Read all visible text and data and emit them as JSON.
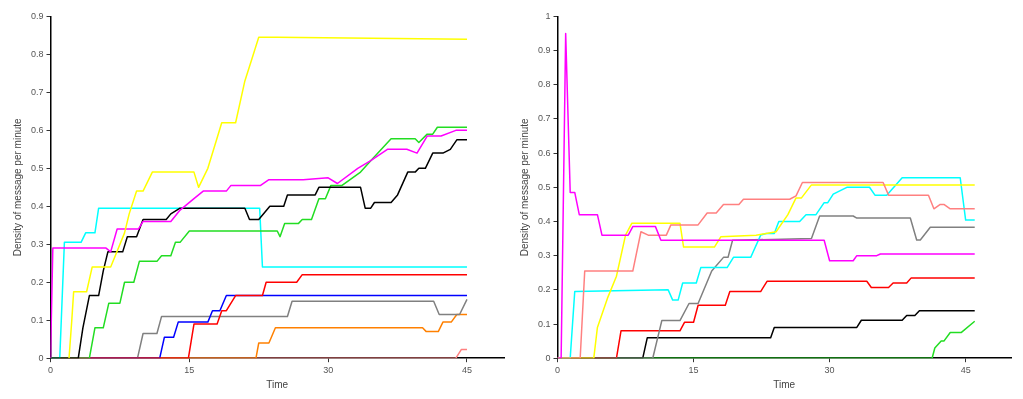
{
  "chart_data": [
    {
      "type": "line",
      "xlabel": "Time",
      "ylabel": "Density of message per minute",
      "xlim": [
        0,
        49
      ],
      "xticks": [
        0,
        15,
        30,
        45
      ],
      "ylim": [
        0,
        0.9
      ],
      "yticks": [
        0,
        0.1,
        0.2,
        0.3,
        0.4,
        0.5,
        0.6,
        0.7,
        0.8,
        0.9
      ],
      "marker": "none",
      "series": [
        {
          "color": "#ffff00",
          "x": [
            2.0,
            2.3,
            2.5,
            3.9,
            4.5,
            6.5,
            7,
            8,
            8.5,
            9.3,
            10,
            11,
            15.5,
            16,
            17,
            18,
            18.5,
            20,
            21,
            22.5,
            24.5,
            45
          ],
          "values": [
            0,
            0.1,
            0.175,
            0.175,
            0.24,
            0.24,
            0.27,
            0.33,
            0.38,
            0.44,
            0.44,
            0.49,
            0.49,
            0.45,
            0.5,
            0.58,
            0.62,
            0.62,
            0.73,
            0.845,
            0.845,
            0.84
          ]
        },
        {
          "color": "#ff00ff",
          "x": [
            0,
            0.25,
            1,
            6,
            6.5,
            7.2,
            9.5,
            10,
            13,
            14,
            15.5,
            16.5,
            19,
            19.5,
            22.7,
            23.6,
            27.3,
            30,
            31,
            33.2,
            34.6,
            36.4,
            38.5,
            39.6,
            40.7,
            42.2,
            43.8,
            45
          ],
          "values": [
            0,
            0.29,
            0.29,
            0.29,
            0.28,
            0.34,
            0.34,
            0.36,
            0.36,
            0.39,
            0.42,
            0.44,
            0.44,
            0.455,
            0.455,
            0.47,
            0.47,
            0.475,
            0.46,
            0.5,
            0.52,
            0.55,
            0.55,
            0.54,
            0.585,
            0.585,
            0.6,
            0.6
          ]
        },
        {
          "color": "#000000",
          "x": [
            0,
            3,
            3.5,
            4.2,
            5.2,
            5.7,
            6.2,
            7.8,
            8.3,
            9.3,
            10,
            12.5,
            13,
            14,
            21,
            21.5,
            22.5,
            23.7,
            25.2,
            25.6,
            28.6,
            29,
            33.5,
            34,
            34.6,
            35,
            36.8,
            37.5,
            38.6,
            39.4,
            39.8,
            40.5,
            41.3,
            42.4,
            43.2,
            43.9,
            45
          ],
          "values": [
            0,
            0,
            0.08,
            0.165,
            0.165,
            0.23,
            0.28,
            0.28,
            0.32,
            0.32,
            0.365,
            0.365,
            0.38,
            0.395,
            0.395,
            0.365,
            0.365,
            0.4,
            0.4,
            0.43,
            0.43,
            0.45,
            0.45,
            0.395,
            0.395,
            0.41,
            0.41,
            0.43,
            0.49,
            0.49,
            0.5,
            0.5,
            0.54,
            0.54,
            0.55,
            0.575,
            0.575
          ]
        },
        {
          "color": "#22dd22",
          "x": [
            0,
            4.2,
            4.8,
            5.7,
            6.3,
            7.5,
            8,
            9,
            9.6,
            11.5,
            12,
            13,
            13.5,
            14,
            15,
            24.5,
            24.8,
            25.3,
            26.8,
            27.2,
            28.2,
            29,
            29.7,
            30.3,
            31.5,
            33.5,
            34.6,
            36.8,
            39.4,
            39.8,
            40.7,
            41.3,
            41.8,
            45
          ],
          "values": [
            0,
            0,
            0.08,
            0.08,
            0.145,
            0.145,
            0.2,
            0.2,
            0.255,
            0.255,
            0.27,
            0.27,
            0.305,
            0.305,
            0.335,
            0.335,
            0.32,
            0.355,
            0.355,
            0.365,
            0.365,
            0.42,
            0.42,
            0.455,
            0.455,
            0.49,
            0.52,
            0.578,
            0.578,
            0.568,
            0.59,
            0.59,
            0.608,
            0.608
          ]
        },
        {
          "color": "#00ffff",
          "x": [
            0,
            1,
            1.5,
            3.3,
            3.8,
            4.8,
            5.2,
            22.6,
            22.9,
            45
          ],
          "values": [
            0,
            0,
            0.305,
            0.305,
            0.33,
            0.33,
            0.395,
            0.395,
            0.24,
            0.24
          ]
        },
        {
          "color": "#ff0000",
          "x": [
            0,
            14.9,
            15.5,
            18,
            18.5,
            19,
            20,
            22.9,
            23.3,
            26.6,
            27.2,
            45
          ],
          "values": [
            0,
            0,
            0.09,
            0.09,
            0.125,
            0.125,
            0.165,
            0.165,
            0.2,
            0.2,
            0.22,
            0.22
          ]
        },
        {
          "color": "#0000ff",
          "x": [
            0,
            11.8,
            12.3,
            13.3,
            13.8,
            17,
            17.5,
            18.3,
            19,
            45
          ],
          "values": [
            0,
            0,
            0.055,
            0.055,
            0.095,
            0.095,
            0.125,
            0.125,
            0.165,
            0.165
          ]
        },
        {
          "color": "#808080",
          "x": [
            0,
            9.4,
            10,
            11.5,
            12,
            25.6,
            26.1,
            41.4,
            42,
            44.2,
            45
          ],
          "values": [
            0,
            0,
            0.065,
            0.065,
            0.11,
            0.11,
            0.15,
            0.15,
            0.115,
            0.115,
            0.155
          ]
        },
        {
          "color": "#ff8000",
          "x": [
            0,
            22.2,
            22.5,
            23.6,
            24.3,
            40.2,
            40.6,
            41.9,
            42.4,
            43.3,
            43.9,
            45
          ],
          "values": [
            0,
            0,
            0.04,
            0.04,
            0.08,
            0.08,
            0.07,
            0.07,
            0.095,
            0.095,
            0.115,
            0.115
          ]
        },
        {
          "color": "#ff8080",
          "x": [
            0,
            43.8,
            44.4,
            45
          ],
          "values": [
            0,
            0,
            0.023,
            0.023
          ]
        }
      ]
    },
    {
      "type": "line",
      "xlabel": "Time",
      "ylabel": "Density of message per minute",
      "xlim": [
        0,
        50
      ],
      "xticks": [
        0,
        15,
        30,
        45
      ],
      "ylim": [
        0,
        1
      ],
      "yticks": [
        0,
        0.1,
        0.2,
        0.3,
        0.4,
        0.5,
        0.6,
        0.7,
        0.8,
        0.9,
        1
      ],
      "marker": "none",
      "series": [
        {
          "color": "#ff00ff",
          "x": [
            0,
            0.4,
            0.9,
            1.4,
            1.9,
            2.4,
            4.4,
            4.9,
            7.8,
            8.3,
            10.8,
            11.4,
            29.4,
            30,
            32.6,
            33,
            35.2,
            35.6,
            46
          ],
          "values": [
            0,
            0,
            0.95,
            0.485,
            0.485,
            0.42,
            0.42,
            0.36,
            0.36,
            0.385,
            0.385,
            0.345,
            0.345,
            0.285,
            0.285,
            0.3,
            0.3,
            0.305,
            0.305
          ]
        },
        {
          "color": "#ff8080",
          "x": [
            0,
            2.5,
            3,
            8.3,
            9.2,
            10,
            12,
            12.5,
            15.5,
            16.5,
            17.5,
            18.3,
            20,
            20.5,
            25.6,
            26.3,
            27,
            35.9,
            36.5,
            40.9,
            41.5,
            42.2,
            42.6,
            43.3,
            46
          ],
          "values": [
            0,
            0,
            0.255,
            0.255,
            0.37,
            0.36,
            0.36,
            0.39,
            0.39,
            0.425,
            0.425,
            0.45,
            0.45,
            0.465,
            0.465,
            0.475,
            0.514,
            0.514,
            0.477,
            0.477,
            0.437,
            0.45,
            0.45,
            0.437,
            0.437
          ]
        },
        {
          "color": "#ffff00",
          "x": [
            0,
            4,
            4.4,
            5.5,
            6.5,
            7.5,
            8.2,
            13.5,
            13.9,
            17.3,
            18,
            21.9,
            24.1,
            25.4,
            26.3,
            26.9,
            28,
            46
          ],
          "values": [
            0,
            0,
            0.09,
            0.175,
            0.24,
            0.36,
            0.395,
            0.395,
            0.325,
            0.325,
            0.355,
            0.36,
            0.37,
            0.42,
            0.469,
            0.469,
            0.507,
            0.507
          ]
        },
        {
          "color": "#00ffff",
          "x": [
            0,
            1.4,
            1.9,
            12.2,
            12.7,
            13.3,
            13.8,
            15.3,
            15.8,
            18.7,
            19.4,
            21.3,
            22.4,
            23,
            23.9,
            24.4,
            26.7,
            27.4,
            28.5,
            29.4,
            29.8,
            30.4,
            31.9,
            34.4,
            35,
            36.3,
            38,
            44.4,
            45,
            46
          ],
          "values": [
            0,
            0,
            0.195,
            0.2,
            0.17,
            0.17,
            0.22,
            0.22,
            0.265,
            0.265,
            0.295,
            0.295,
            0.36,
            0.365,
            0.365,
            0.4,
            0.4,
            0.42,
            0.42,
            0.455,
            0.455,
            0.48,
            0.5,
            0.5,
            0.477,
            0.477,
            0.528,
            0.528,
            0.404,
            0.404
          ]
        },
        {
          "color": "#808080",
          "x": [
            0,
            10.5,
            11.5,
            13.5,
            14.5,
            15.5,
            17,
            18.3,
            18.8,
            19.3,
            28,
            28.9,
            32.6,
            33,
            38.9,
            39.6,
            40,
            41.1,
            46
          ],
          "values": [
            0,
            0,
            0.11,
            0.11,
            0.16,
            0.16,
            0.255,
            0.295,
            0.295,
            0.345,
            0.35,
            0.416,
            0.416,
            0.41,
            0.41,
            0.346,
            0.346,
            0.383,
            0.383
          ]
        },
        {
          "color": "#ff0000",
          "x": [
            0,
            6.5,
            7,
            13.5,
            14,
            15,
            15.5,
            18.5,
            19,
            22.4,
            23.1,
            34.1,
            34.6,
            36.5,
            37,
            38.5,
            39,
            46
          ],
          "values": [
            0,
            0,
            0.08,
            0.08,
            0.105,
            0.105,
            0.155,
            0.155,
            0.195,
            0.195,
            0.225,
            0.225,
            0.207,
            0.207,
            0.22,
            0.22,
            0.235,
            0.235
          ]
        },
        {
          "color": "#000000",
          "x": [
            0,
            9.4,
            9.9,
            23.5,
            23.9,
            33,
            33.5,
            38,
            38.5,
            39.4,
            39.9,
            46
          ],
          "values": [
            0,
            0,
            0.06,
            0.06,
            0.09,
            0.09,
            0.111,
            0.111,
            0.125,
            0.125,
            0.139,
            0.139
          ]
        },
        {
          "color": "#22dd22",
          "x": [
            0,
            41.3,
            41.6,
            42.3,
            42.6,
            43.3,
            44.5,
            46
          ],
          "values": [
            0,
            0,
            0.03,
            0.05,
            0.05,
            0.075,
            0.075,
            0.108
          ]
        }
      ]
    }
  ]
}
